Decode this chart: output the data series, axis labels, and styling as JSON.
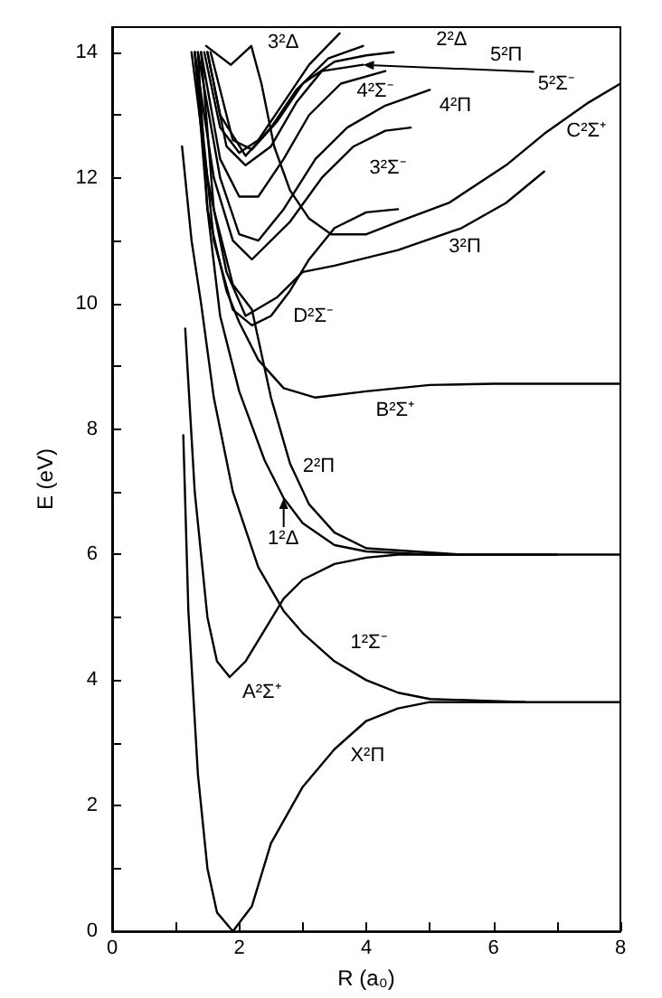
{
  "chart_data": {
    "type": "line",
    "xlabel": "R (a₀)",
    "ylabel": "E (eV)",
    "xlim": [
      0,
      8
    ],
    "ylim": [
      0,
      14.4
    ],
    "xticks": [
      0,
      {
        "value": 1,
        "label": null
      },
      2,
      {
        "value": 3,
        "label": null
      },
      4,
      {
        "value": 5,
        "label": null
      },
      6,
      {
        "value": 7,
        "label": null
      },
      8
    ],
    "yticks": [
      0,
      {
        "value": 1,
        "label": null
      },
      2,
      {
        "value": 3,
        "label": null
      },
      4,
      {
        "value": 5,
        "label": null
      },
      6,
      {
        "value": 7,
        "label": null
      },
      8,
      {
        "value": 9,
        "label": null
      },
      10,
      {
        "value": 11,
        "label": null
      },
      12,
      {
        "value": 13,
        "label": null
      },
      14
    ],
    "grid": false,
    "marker": "none",
    "line_style": "solid",
    "series": [
      {
        "color": "#000000",
        "x": [
          1.12,
          1.2,
          1.35,
          1.5,
          1.65,
          1.9,
          2.2,
          2.5,
          3.0,
          3.5,
          4.0,
          4.5,
          5.0,
          6.0,
          8.0
        ],
        "values": [
          7.9,
          5.1,
          2.5,
          1.0,
          0.3,
          0,
          0.4,
          1.4,
          2.3,
          2.9,
          3.35,
          3.55,
          3.65,
          3.65,
          3.65
        ]
      },
      {
        "color": "#000000",
        "x": [
          1.15,
          1.3,
          1.5,
          1.65,
          1.85,
          2.1,
          2.4,
          2.7,
          3.0,
          3.5,
          4.0,
          4.5,
          8.0
        ],
        "values": [
          9.6,
          7.0,
          5.0,
          4.3,
          4.05,
          4.3,
          4.8,
          5.3,
          5.6,
          5.85,
          5.95,
          6.0,
          6.0
        ]
      },
      {
        "color": "#000000",
        "x": [
          1.1,
          1.25,
          1.4,
          1.6,
          1.9,
          2.3,
          2.7,
          3.0,
          3.5,
          4.0,
          4.5,
          5.0,
          6.5
        ],
        "values": [
          12.5,
          11.0,
          10.0,
          8.5,
          7.0,
          5.8,
          5.1,
          4.75,
          4.3,
          4.0,
          3.8,
          3.7,
          3.65
        ]
      },
      {
        "color": "#000000",
        "x": [
          1.35,
          1.5,
          1.7,
          2.0,
          2.4,
          2.7,
          3.0,
          3.5,
          4.0,
          5.0,
          7.0
        ],
        "values": [
          14,
          11.5,
          9.8,
          8.6,
          7.5,
          6.9,
          6.5,
          6.15,
          6.05,
          6.0,
          6.0
        ]
      },
      {
        "color": "#000000",
        "x": [
          1.4,
          1.6,
          1.9,
          2.2,
          2.5,
          2.8,
          3.1,
          3.5,
          4.0,
          5.5
        ],
        "values": [
          14,
          11.5,
          10.3,
          9.9,
          8.5,
          7.45,
          6.8,
          6.35,
          6.1,
          6.0
        ]
      },
      {
        "color": "#000000",
        "x": [
          1.3,
          1.5,
          1.8,
          2.0,
          2.3,
          2.7,
          3.2,
          4.0,
          5.0,
          6.0,
          8.0
        ],
        "values": [
          14,
          11.5,
          10.2,
          9.7,
          9.1,
          8.65,
          8.5,
          8.6,
          8.7,
          8.72,
          8.72
        ]
      },
      {
        "color": "#000000",
        "x": [
          1.3,
          1.6,
          1.9,
          2.2,
          2.5,
          2.8,
          3.1,
          3.5,
          4.0,
          4.5
        ],
        "values": [
          14,
          11.0,
          9.9,
          9.65,
          9.8,
          10.2,
          10.7,
          11.2,
          11.45,
          11.5
        ]
      },
      {
        "color": "#000000",
        "x": [
          1.25,
          1.5,
          1.8,
          2.1,
          2.6,
          3.0,
          3.5,
          4.5,
          5.5,
          6.2,
          6.8
        ],
        "values": [
          14,
          12.0,
          10.5,
          9.8,
          10.1,
          10.5,
          10.6,
          10.85,
          11.2,
          11.6,
          12.1
        ]
      },
      {
        "color": "#000000",
        "x": [
          1.3,
          1.6,
          1.9,
          2.2,
          2.8,
          3.3,
          3.8,
          4.3,
          4.7
        ],
        "values": [
          14,
          12.0,
          11.0,
          10.7,
          11.3,
          12.0,
          12.5,
          12.75,
          12.8
        ]
      },
      {
        "color": "#000000",
        "x": [
          1.35,
          1.7,
          2.0,
          2.3,
          2.7,
          3.2,
          3.7,
          4.3,
          5.0
        ],
        "values": [
          14,
          12.0,
          11.1,
          11.0,
          11.5,
          12.3,
          12.8,
          13.15,
          13.4
        ]
      },
      {
        "color": "#000000",
        "x": [
          1.4,
          1.7,
          2.0,
          2.3,
          2.7,
          3.1,
          3.6,
          4.3
        ],
        "values": [
          14,
          12.3,
          11.7,
          11.7,
          12.3,
          13.0,
          13.5,
          13.7
        ]
      },
      {
        "color": "#000000",
        "x": [
          1.5,
          1.8,
          2.1,
          2.5,
          2.9,
          3.3,
          3.95
        ],
        "values": [
          14,
          12.5,
          12.2,
          12.5,
          13.2,
          13.7,
          13.8
        ]
      },
      {
        "color": "#000000",
        "x": [
          1.55,
          1.9,
          2.2,
          2.6,
          3.0,
          3.5,
          4.0,
          4.43
        ],
        "values": [
          14,
          12.6,
          12.45,
          12.9,
          13.5,
          13.85,
          13.95,
          14.0
        ]
      },
      {
        "color": "#000000",
        "x": [
          1.5,
          1.7,
          2.1,
          2.5,
          2.9,
          3.4,
          3.95
        ],
        "values": [
          14,
          13.0,
          12.35,
          12.8,
          13.4,
          13.9,
          14.1
        ]
      },
      {
        "color": "#000000",
        "x": [
          1.45,
          1.7,
          2.0,
          2.3,
          2.7,
          3.1,
          3.58
        ],
        "values": [
          14,
          12.8,
          12.4,
          12.6,
          13.2,
          13.8,
          14.3
        ]
      },
      {
        "color": "#000000",
        "x": [
          1.48,
          1.87,
          2.19,
          2.35,
          2.55,
          2.8,
          3.1,
          3.45,
          4.0,
          4.5,
          5.3,
          6.2,
          6.8,
          7.5,
          8.0
        ],
        "values": [
          14.1,
          13.8,
          14.1,
          13.5,
          12.5,
          11.8,
          11.35,
          11.1,
          11.1,
          11.3,
          11.6,
          12.2,
          12.7,
          13.2,
          13.5
        ]
      }
    ],
    "annotations": [
      "3²Δ",
      "2²Δ",
      "5²Π",
      {
        "text": "5²Σ⁻",
        "x": 3.95,
        "y": 13.8
      },
      "4²Σ⁻",
      "4²Π",
      "C²Σ⁺",
      "3²Σ⁻",
      "3²Π",
      "D²Σ⁻",
      "B²Σ⁺",
      "2²Π",
      {
        "text": "1²Δ",
        "x": 2.7,
        "y": 6.9
      },
      "1²Σ⁻",
      "A²Σ⁺",
      "X²Π"
    ]
  }
}
